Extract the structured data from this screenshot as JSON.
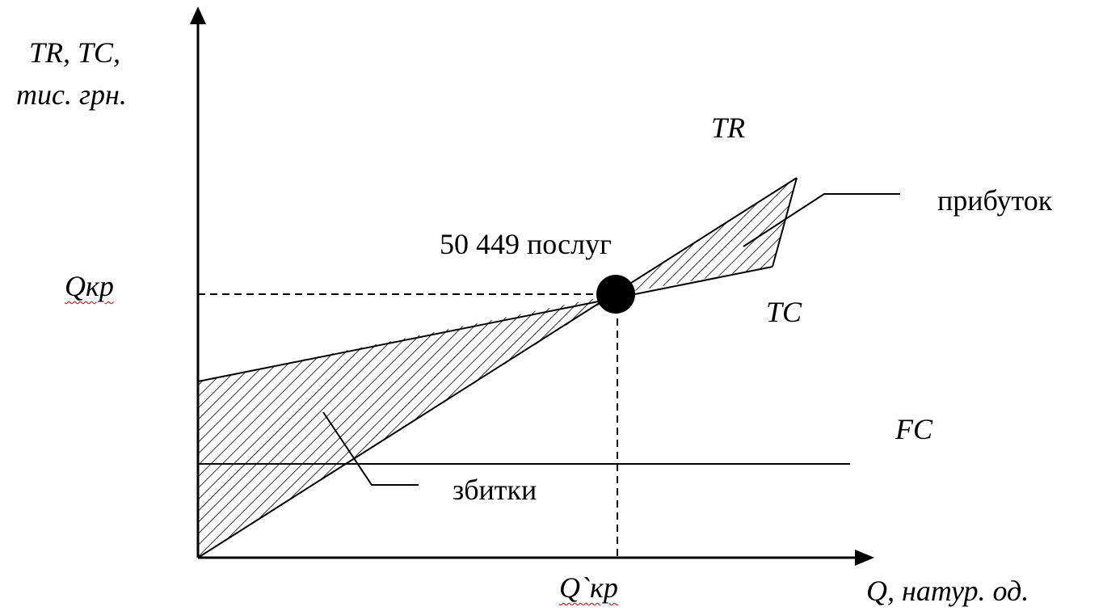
{
  "diagram": {
    "y_axis_label_line1": "TR, TC,",
    "y_axis_label_line2": "тис. грн.",
    "x_axis_label": "Q, натур. од.",
    "y_tick_label": "Qкр",
    "x_tick_label": "Q`кр",
    "curve_labels": {
      "tr": "TR",
      "tc": "TC",
      "fc": "FC"
    },
    "breakeven_label": "50 449 послуг",
    "profit_label": "прибуток",
    "loss_label": "збитки",
    "colors": {
      "lines": "#000000",
      "hatch": "#000000",
      "breakeven_point": "#000000",
      "spellcheck_underline": "#d00000"
    }
  }
}
